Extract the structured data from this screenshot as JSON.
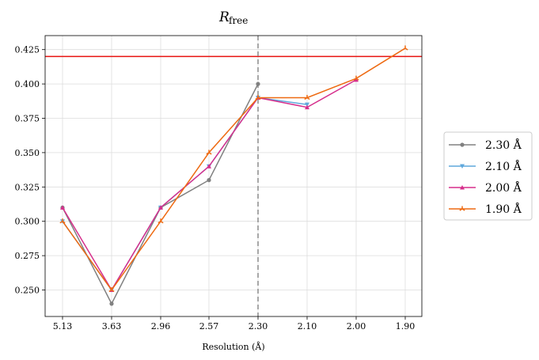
{
  "chart_data": {
    "type": "line",
    "title": {
      "main": "R",
      "sub": "free"
    },
    "xlabel": "Resolution (Å)",
    "ylabel": "",
    "categories": [
      "5.13",
      "3.63",
      "2.96",
      "2.57",
      "2.30",
      "2.10",
      "2.00",
      "1.90"
    ],
    "ylim": [
      0.232,
      0.435
    ],
    "yticks": [
      "0.250",
      "0.275",
      "0.300",
      "0.325",
      "0.350",
      "0.375",
      "0.400",
      "0.425"
    ],
    "grid": true,
    "legend_position": "right",
    "reference_lines": {
      "horizontal": {
        "y": 0.42,
        "color": "#e8110f"
      },
      "vertical": {
        "x": "2.30",
        "color": "#8c8c8c",
        "style": "dashed"
      }
    },
    "series": [
      {
        "name": "2.30 Å",
        "color": "#808080",
        "marker": "circle",
        "values": [
          0.31,
          0.24,
          0.31,
          0.33,
          0.4,
          null,
          null,
          null
        ]
      },
      {
        "name": "2.10 Å",
        "color": "#5fa8dc",
        "marker": "triangle-down",
        "values": [
          0.3,
          0.25,
          0.31,
          0.34,
          0.39,
          0.385,
          null,
          null
        ]
      },
      {
        "name": "2.00 Å",
        "color": "#d62f8c",
        "marker": "triangle-up",
        "values": [
          0.31,
          0.25,
          0.31,
          0.34,
          0.39,
          0.383,
          0.403,
          null
        ]
      },
      {
        "name": "1.90 Å",
        "color": "#ee6a12",
        "marker": "tri",
        "values": [
          0.3,
          0.25,
          0.3,
          0.35,
          0.39,
          0.39,
          0.404,
          0.426
        ]
      }
    ]
  }
}
